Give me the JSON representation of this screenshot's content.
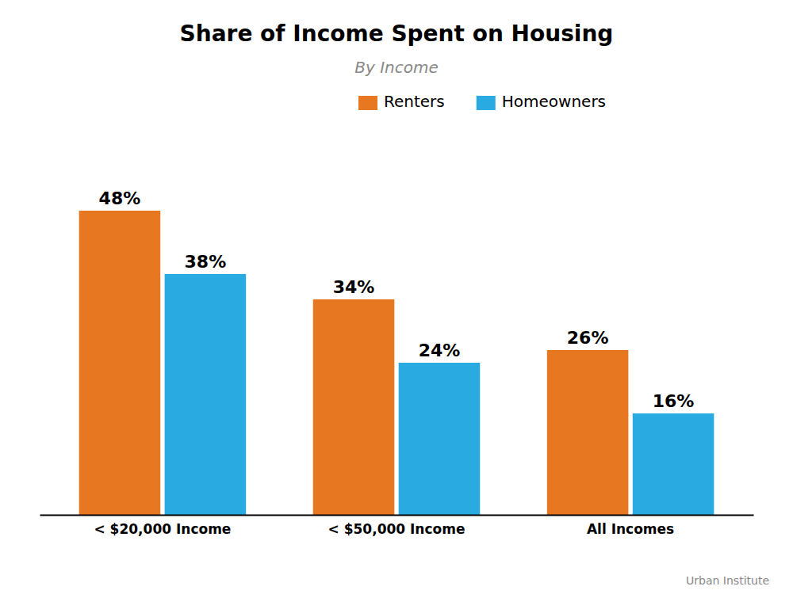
{
  "chart_data": {
    "type": "bar",
    "title": "Share of Income Spent on Housing",
    "subtitle": "By Income",
    "categories": [
      "< $20,000 Income",
      "< $50,000 Income",
      "All Incomes"
    ],
    "series": [
      {
        "name": "Renters",
        "color": "#E87722",
        "values": [
          48,
          34,
          26
        ],
        "value_labels": [
          "48%",
          "34%",
          "26%"
        ]
      },
      {
        "name": "Homeowners",
        "color": "#29ABE2",
        "values": [
          38,
          24,
          16
        ],
        "value_labels": [
          "38%",
          "24%",
          "16%"
        ]
      }
    ],
    "ylim": [
      0,
      60
    ],
    "data_labels": true,
    "tick_labels": "x",
    "grid": false,
    "legend": "top",
    "annotations": [
      "Urban Institute"
    ]
  }
}
